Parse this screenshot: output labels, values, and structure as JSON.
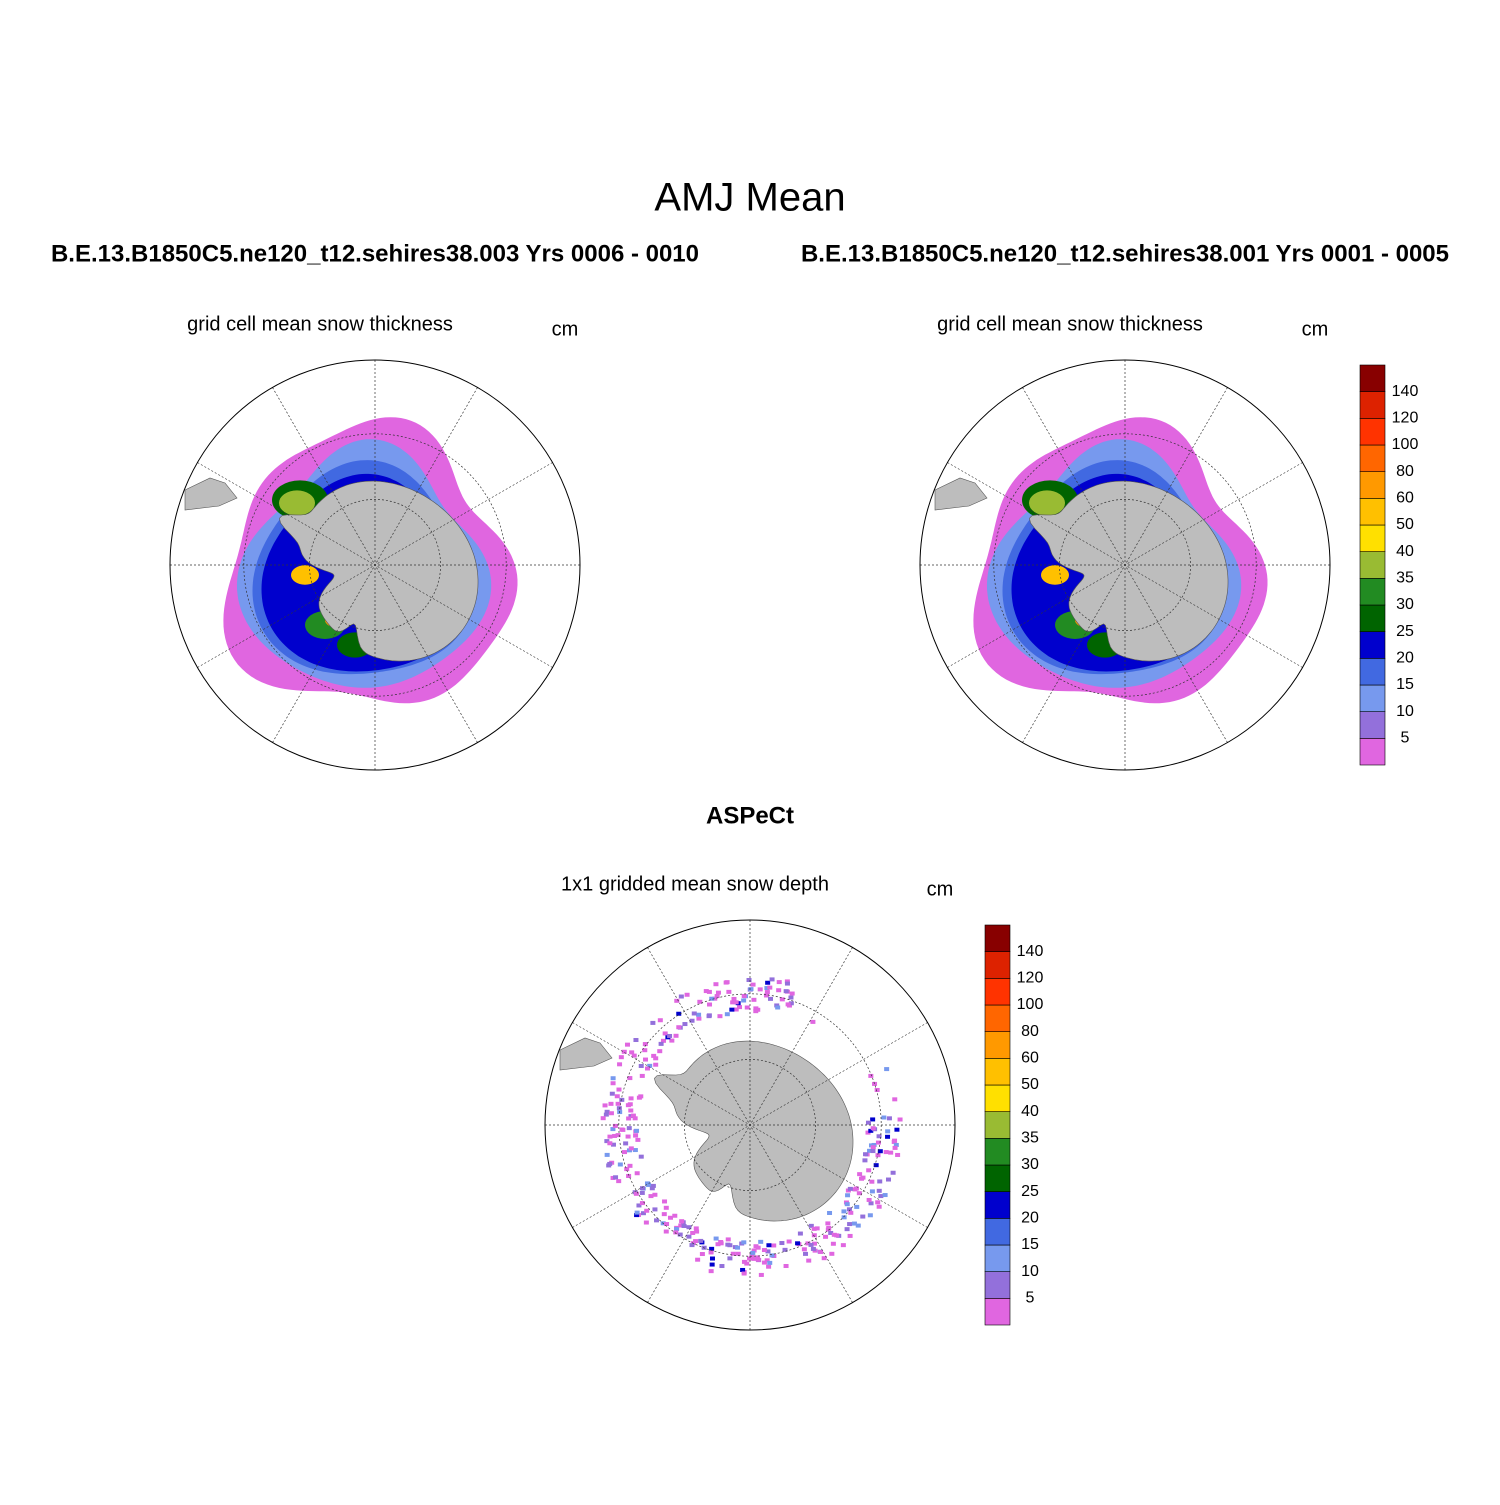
{
  "title": "AMJ Mean",
  "panels": [
    {
      "header": "B.E.13.B1850C5.ne120_t12.sehires38.003  Yrs 0006 - 0010",
      "subtitle": "grid cell mean snow thickness",
      "units": "cm"
    },
    {
      "header": "B.E.13.B1850C5.ne120_t12.sehires38.001  Yrs 0001 - 0005",
      "subtitle": "grid cell mean snow thickness",
      "units": "cm"
    },
    {
      "header": "ASPeCt",
      "subtitle": "1x1 gridded mean snow depth",
      "units": "cm"
    }
  ],
  "colorbars": [
    {
      "levels": [
        5,
        10,
        15,
        20,
        25,
        30,
        35,
        40,
        50,
        60,
        80,
        100,
        120,
        140
      ],
      "colors": [
        "#e066e0",
        "#9370db",
        "#7799ee",
        "#4169e1",
        "#0000cd",
        "#006400",
        "#228b22",
        "#99bb33",
        "#ffe000",
        "#ffc000",
        "#ff9900",
        "#ff6600",
        "#ff3300",
        "#dd2200",
        "#880000"
      ]
    },
    {
      "levels": [
        5,
        10,
        15,
        20,
        25,
        30,
        35,
        40,
        50,
        60,
        80,
        100,
        120,
        140
      ],
      "colors": [
        "#e066e0",
        "#9370db",
        "#7799ee",
        "#4169e1",
        "#0000cd",
        "#006400",
        "#228b22",
        "#99bb33",
        "#ffe000",
        "#ffc000",
        "#ff9900",
        "#ff6600",
        "#ff3300",
        "#dd2200",
        "#880000"
      ]
    }
  ]
}
